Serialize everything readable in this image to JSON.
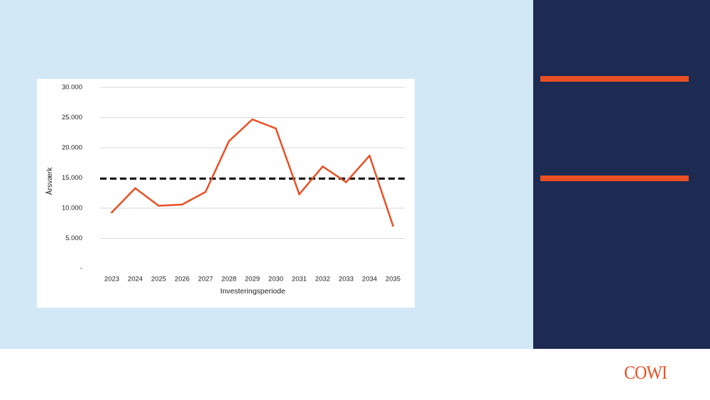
{
  "brand": {
    "logo_text": "COWI",
    "accent_color": "#ea4f24",
    "dark_panel_color": "#1d2a52",
    "light_panel_color": "#d3e8f6"
  },
  "chart_data": {
    "type": "line",
    "xlabel": "Investeringsperiode",
    "ylabel": "Årsværk",
    "categories": [
      "2023",
      "2024",
      "2025",
      "2026",
      "2027",
      "2028",
      "2029",
      "2030",
      "2031",
      "2032",
      "2033",
      "2034",
      "2035"
    ],
    "series": [
      {
        "color": "#ea4f24",
        "values": [
          9300,
          13300,
          10400,
          10600,
          12700,
          21100,
          24700,
          23200,
          12300,
          16900,
          14300,
          18700,
          7100
        ]
      }
    ],
    "reference_line": {
      "value": 14900,
      "style": "dashed",
      "color": "#000000"
    },
    "ylim": [
      0,
      30000
    ],
    "yticks": [
      {
        "value": 30000,
        "label": "30.000"
      },
      {
        "value": 25000,
        "label": "25.000"
      },
      {
        "value": 20000,
        "label": "20.000"
      },
      {
        "value": 15000,
        "label": "15.000"
      },
      {
        "value": 10000,
        "label": "10.000"
      },
      {
        "value": 5000,
        "label": "5.000"
      },
      {
        "value": 0,
        "label": "-"
      }
    ],
    "grid": true,
    "legend": "none"
  }
}
